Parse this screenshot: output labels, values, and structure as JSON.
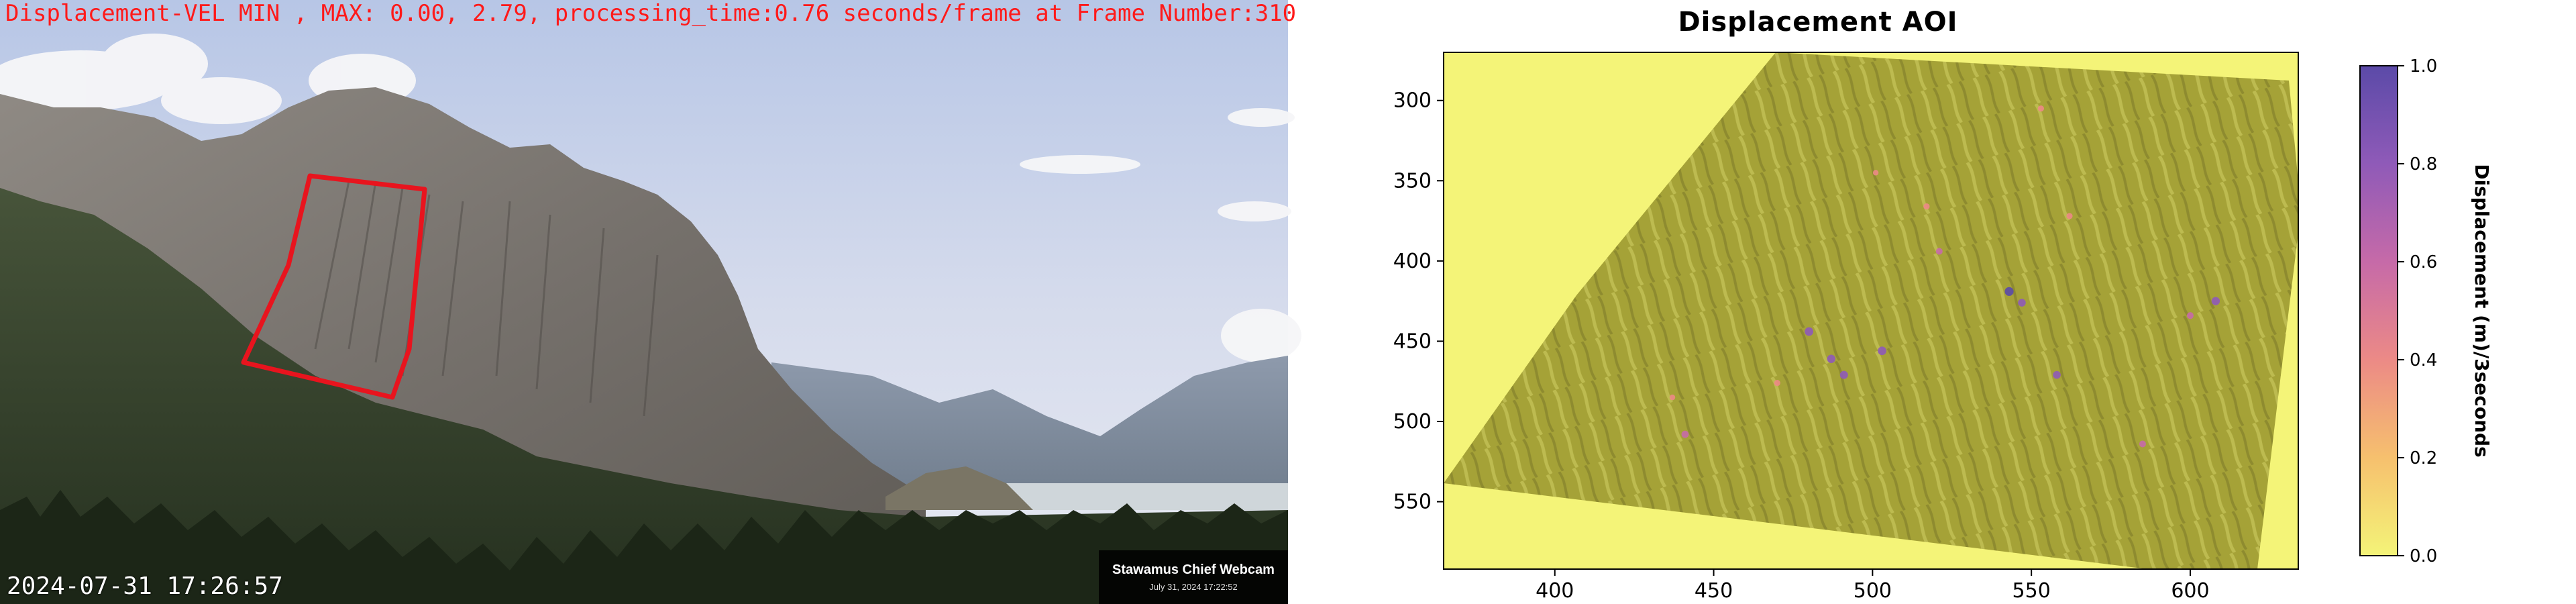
{
  "webcam": {
    "overlay_text": "Displacement-VEL MIN , MAX: 0.00, 2.79, processing_time:0.76 seconds/frame at Frame Number:310",
    "timestamp": "2024-07-31 17:26:57",
    "badge_title": "Stawamus Chief Webcam",
    "badge_date": "July 31, 2024 17:22:52",
    "overlay_color": "#ff1a1a",
    "roi_color": "#e8141e"
  },
  "chart_data": {
    "type": "heatmap",
    "title": "Displacement AOI",
    "x_ticks": [
      400,
      450,
      500,
      550,
      600
    ],
    "y_ticks": [
      300,
      350,
      400,
      450,
      500,
      550
    ],
    "xlim": [
      365,
      634
    ],
    "ylim": [
      592,
      270
    ],
    "colorbar": {
      "label": "Displacement (m)/3seconds",
      "ticks": [
        "0.0",
        "0.2",
        "0.4",
        "0.6",
        "0.8",
        "1.0"
      ],
      "range": [
        0.0,
        1.0
      ],
      "colormap": [
        "#f4f478",
        "#f6c06e",
        "#ec8a86",
        "#c66aa8",
        "#8f5ab8",
        "#5b4aa8"
      ]
    },
    "hotspots": [
      {
        "x": 543,
        "y": 419,
        "v": 0.9
      },
      {
        "x": 480,
        "y": 444,
        "v": 0.85
      },
      {
        "x": 487,
        "y": 461,
        "v": 0.8
      },
      {
        "x": 491,
        "y": 471,
        "v": 0.75
      },
      {
        "x": 503,
        "y": 456,
        "v": 0.85
      },
      {
        "x": 547,
        "y": 426,
        "v": 0.7
      },
      {
        "x": 608,
        "y": 425,
        "v": 0.8
      },
      {
        "x": 558,
        "y": 471,
        "v": 0.7
      },
      {
        "x": 441,
        "y": 508,
        "v": 0.6
      },
      {
        "x": 521,
        "y": 394,
        "v": 0.5
      },
      {
        "x": 600,
        "y": 434,
        "v": 0.5
      },
      {
        "x": 585,
        "y": 514,
        "v": 0.5
      },
      {
        "x": 562,
        "y": 372,
        "v": 0.4
      },
      {
        "x": 517,
        "y": 366,
        "v": 0.4
      },
      {
        "x": 501,
        "y": 345,
        "v": 0.3
      },
      {
        "x": 553,
        "y": 305,
        "v": 0.4
      },
      {
        "x": 437,
        "y": 485,
        "v": 0.3
      },
      {
        "x": 470,
        "y": 476,
        "v": 0.4
      }
    ]
  }
}
